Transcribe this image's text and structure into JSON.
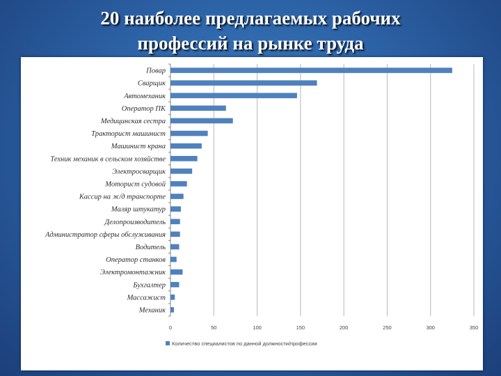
{
  "slide": {
    "title_line1": "20 наиболее предлагаемых рабочих",
    "title_line2": "профессий на рынке труда"
  },
  "colors": {
    "bar": "#4f81bd",
    "grid": "#b7b7b7",
    "axis": "#868686"
  },
  "chart_data": {
    "type": "bar",
    "orientation": "horizontal",
    "categories": [
      "Повар",
      "Сварщик",
      "Автомеханик",
      "Оператор ПК",
      "Медицинская сестра",
      "Тракторист машинист",
      "Машинист крана",
      "Техник механик в сельском хозяйстве",
      "Электросварщик",
      "Моторист судовой",
      "Кассир на ж/д транспорте",
      "Маляр штукатур",
      "Делопроизводитель",
      "Администратор сферы обслуживания",
      "Водитель",
      "Оператор станков",
      "Электромонтажник",
      "Бухгалтер",
      "Массажист",
      "Механик"
    ],
    "series": [
      {
        "name": "Количество специалистов по данной должности/профессии",
        "values": [
          325,
          169,
          146,
          64,
          72,
          43,
          36,
          31,
          25,
          19,
          15,
          12,
          11,
          11,
          10,
          7,
          14,
          10,
          5,
          4
        ]
      }
    ],
    "xlim": [
      0,
      350
    ],
    "xticks": [
      0,
      50,
      100,
      150,
      200,
      250,
      300,
      350
    ],
    "grid": true,
    "legend": "bottom"
  }
}
